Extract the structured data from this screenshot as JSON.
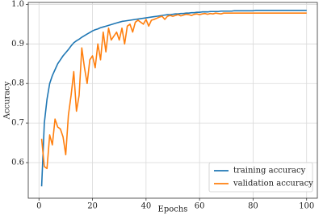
{
  "chart_data": {
    "type": "line",
    "x_label": "Epochs",
    "y_label": "Accuracy",
    "x": [
      1,
      2,
      3,
      4,
      5,
      6,
      7,
      8,
      9,
      10,
      11,
      12,
      13,
      14,
      15,
      16,
      17,
      18,
      19,
      20,
      21,
      22,
      23,
      24,
      25,
      26,
      27,
      28,
      29,
      30,
      31,
      32,
      33,
      34,
      35,
      36,
      37,
      38,
      39,
      40,
      41,
      42,
      43,
      44,
      45,
      46,
      47,
      48,
      49,
      50,
      51,
      52,
      53,
      54,
      55,
      56,
      57,
      58,
      59,
      60,
      61,
      62,
      63,
      64,
      65,
      66,
      67,
      68,
      69,
      70,
      71,
      72,
      73,
      74,
      75,
      76,
      77,
      78,
      79,
      80,
      81,
      82,
      83,
      84,
      85,
      86,
      87,
      88,
      89,
      90,
      91,
      92,
      93,
      94,
      95,
      96,
      97,
      98,
      99,
      100
    ],
    "series": [
      {
        "name": "training accuracy",
        "color": "#1f77b4",
        "values": [
          0.54,
          0.7,
          0.76,
          0.8,
          0.82,
          0.835,
          0.85,
          0.86,
          0.87,
          0.878,
          0.886,
          0.895,
          0.903,
          0.908,
          0.912,
          0.917,
          0.921,
          0.925,
          0.929,
          0.933,
          0.936,
          0.938,
          0.941,
          0.943,
          0.945,
          0.947,
          0.949,
          0.951,
          0.953,
          0.955,
          0.957,
          0.958,
          0.959,
          0.96,
          0.961,
          0.962,
          0.963,
          0.964,
          0.965,
          0.966,
          0.967,
          0.968,
          0.969,
          0.97,
          0.971,
          0.972,
          0.973,
          0.974,
          0.974,
          0.975,
          0.976,
          0.976,
          0.977,
          0.977,
          0.978,
          0.978,
          0.979,
          0.979,
          0.98,
          0.98,
          0.981,
          0.981,
          0.981,
          0.982,
          0.982,
          0.982,
          0.982,
          0.983,
          0.983,
          0.983,
          0.983,
          0.983,
          0.984,
          0.984,
          0.984,
          0.984,
          0.984,
          0.984,
          0.984,
          0.984,
          0.985,
          0.985,
          0.985,
          0.985,
          0.985,
          0.985,
          0.985,
          0.985,
          0.985,
          0.985,
          0.985,
          0.985,
          0.985,
          0.985,
          0.985,
          0.985,
          0.985,
          0.985,
          0.985,
          0.985
        ]
      },
      {
        "name": "validation accuracy",
        "color": "#ff7f0e",
        "values": [
          0.66,
          0.59,
          0.585,
          0.67,
          0.645,
          0.71,
          0.69,
          0.685,
          0.665,
          0.62,
          0.72,
          0.77,
          0.83,
          0.73,
          0.77,
          0.89,
          0.84,
          0.8,
          0.86,
          0.87,
          0.84,
          0.9,
          0.86,
          0.93,
          0.88,
          0.94,
          0.91,
          0.92,
          0.93,
          0.91,
          0.94,
          0.9,
          0.945,
          0.95,
          0.93,
          0.955,
          0.96,
          0.955,
          0.95,
          0.962,
          0.945,
          0.96,
          0.962,
          0.965,
          0.968,
          0.97,
          0.962,
          0.97,
          0.972,
          0.97,
          0.972,
          0.974,
          0.971,
          0.973,
          0.975,
          0.974,
          0.972,
          0.975,
          0.976,
          0.974,
          0.976,
          0.977,
          0.975,
          0.977,
          0.976,
          0.978,
          0.977,
          0.976,
          0.978,
          0.978,
          0.978,
          0.978,
          0.978,
          0.978,
          0.978,
          0.978,
          0.978,
          0.978,
          0.978,
          0.978,
          0.978,
          0.978,
          0.978,
          0.978,
          0.978,
          0.978,
          0.978,
          0.978,
          0.978,
          0.978,
          0.978,
          0.978,
          0.978,
          0.978,
          0.978,
          0.978,
          0.978,
          0.978,
          0.978,
          0.978
        ]
      }
    ],
    "xlim": [
      -4,
      104
    ],
    "xticks": [
      0,
      20,
      40,
      60,
      80,
      100
    ],
    "ylim": [
      0.51,
      1.005
    ],
    "yticks": [
      0.6,
      0.7,
      0.8,
      0.9,
      {
        "value": 1,
        "label": "1.0"
      }
    ],
    "grid": true,
    "legend": "lower right"
  }
}
